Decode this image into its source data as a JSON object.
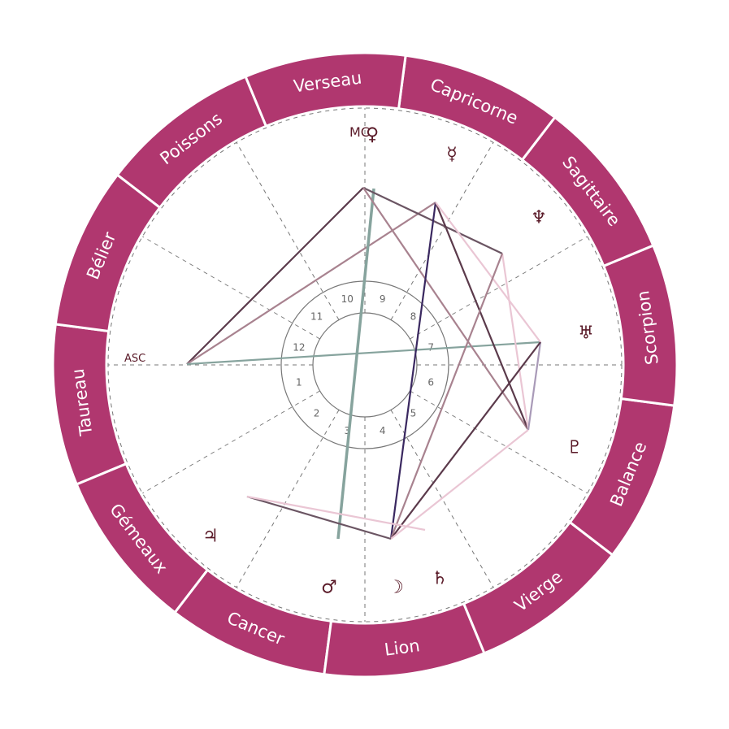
{
  "chart": {
    "ring_color": "#b0376f",
    "glyph_color": "#5a1a28",
    "signs": [
      "Taureau",
      "Gémeaux",
      "Cancer",
      "Lion",
      "Vierge",
      "Balance",
      "Scorpion",
      "Sagittaire",
      "Capricorne",
      "Verseau",
      "Poissons",
      "Bélier"
    ],
    "houses": [
      "1",
      "2",
      "3",
      "4",
      "5",
      "6",
      "7",
      "8",
      "9",
      "10",
      "11",
      "12"
    ],
    "axes": {
      "asc": "ASC",
      "mc": "MC"
    },
    "planets": [
      {
        "key": "venus",
        "glyph": "♀",
        "name": "venus"
      },
      {
        "key": "mercury",
        "glyph": "☿",
        "name": "mercury"
      },
      {
        "key": "neptune",
        "glyph": "♆",
        "name": "neptune"
      },
      {
        "key": "uranus",
        "glyph": "♅",
        "name": "uranus"
      },
      {
        "key": "pluto",
        "glyph": "♇",
        "name": "pluto"
      },
      {
        "key": "saturn",
        "glyph": "♄",
        "name": "saturn"
      },
      {
        "key": "moon",
        "glyph": "☽",
        "name": "moon"
      },
      {
        "key": "mars",
        "glyph": "♂",
        "name": "mars"
      },
      {
        "key": "jupiter",
        "glyph": "♃",
        "name": "jupiter"
      }
    ],
    "aspects": [
      {
        "from": "asc",
        "to": "mc",
        "color": "#5b3a4b"
      },
      {
        "from": "asc",
        "to": "mercury",
        "color": "#a8828f"
      },
      {
        "from": "asc",
        "to": "uranus",
        "color": "#86a39d"
      },
      {
        "from": "venus",
        "to": "mars",
        "color": "#86a39d"
      },
      {
        "from": "mc",
        "to": "neptune",
        "color": "#6b5563"
      },
      {
        "from": "mc",
        "to": "pluto",
        "color": "#a8828f"
      },
      {
        "from": "mercury",
        "to": "moon",
        "color": "#3a2860"
      },
      {
        "from": "mercury",
        "to": "pluto",
        "color": "#5b3a4b"
      },
      {
        "from": "mercury",
        "to": "uranus",
        "color": "#eac6d4"
      },
      {
        "from": "neptune",
        "to": "pluto",
        "color": "#eac6d4"
      },
      {
        "from": "neptune",
        "to": "moon",
        "color": "#a8828f"
      },
      {
        "from": "uranus",
        "to": "pluto",
        "color": "#a99ab8"
      },
      {
        "from": "uranus",
        "to": "moon",
        "color": "#5b3a4b"
      },
      {
        "from": "pluto",
        "to": "moon",
        "color": "#eac6d4"
      },
      {
        "from": "jupiter",
        "to": "moon",
        "color": "#6b5563"
      },
      {
        "from": "jupiter",
        "to": "saturn",
        "color": "#eac6d4"
      }
    ]
  }
}
